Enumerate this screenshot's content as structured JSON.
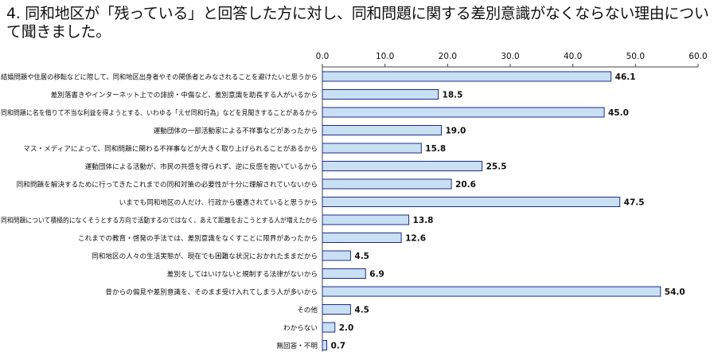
{
  "title": "4. 同和地区が「残っている」と回答した方に対し、同和問題に関する差別意識がなくならない理由について聞きました。",
  "colors": {
    "bar_fill": "#c9e0f4",
    "bar_stroke": "#1d2b8a",
    "axis": "#444444",
    "text": "#111111"
  },
  "chart_data": {
    "type": "bar",
    "orientation": "horizontal",
    "xlim": [
      0,
      60
    ],
    "ticks": [
      "0.0",
      "10.0",
      "20.0",
      "30.0",
      "40.0",
      "50.0",
      "60.0"
    ],
    "tick_values": [
      0,
      10,
      20,
      30,
      40,
      50,
      60
    ],
    "categories": [
      "結婚問題や住居の移転などに際して、同和地区出身者やその関係者とみなされることを避けたいと思うから",
      "差別落書きやインターネット上での誹謗・中傷など、差別意識を助長する人がいるから",
      "同和問題に名を借りて不当な利益を得ようとする、いわゆる「えせ同和行為」などを見聞きすることがあるから",
      "運動団体の一部活動家による不祥事などがあったから",
      "マス・メディアによって、同和問題に関わる不祥事などが大きく取り上げられることがあるから",
      "運動団体による活動が、市民の共感を得られず、逆に反感を抱いているから",
      "同和問題を解決するために行ってきたこれまでの同和対策の必要性が十分に理解されていないから",
      "いまでも同和地区の人だけ、行政から優遇されていると思うから",
      "同和問題について積極的になくそうとする方向で活動するのではなく、あえて距離をおこうとする人が増えたから",
      "これまでの教育・啓発の手法では、差別意識をなくすことに限界があったから",
      "同和地区の人々の生活実態が、現在でも困難な状況におかれたままだから",
      "差別をしてはいけないと規制する法律がないから",
      "昔からの偏見や差別意識を、そのまま受け入れてしまう人が多いから",
      "その他",
      "わからない",
      "無回答・不明"
    ],
    "values": [
      46.1,
      18.5,
      45.0,
      19.0,
      15.8,
      25.5,
      20.6,
      47.5,
      13.8,
      12.6,
      4.5,
      6.9,
      54.0,
      4.5,
      2.0,
      0.7
    ],
    "value_labels": [
      "46.1",
      "18.5",
      "45.0",
      "19.0",
      "15.8",
      "25.5",
      "20.6",
      "47.5",
      "13.8",
      "12.6",
      "4.5",
      "6.9",
      "54.0",
      "4.5",
      "2.0",
      "0.7"
    ]
  }
}
